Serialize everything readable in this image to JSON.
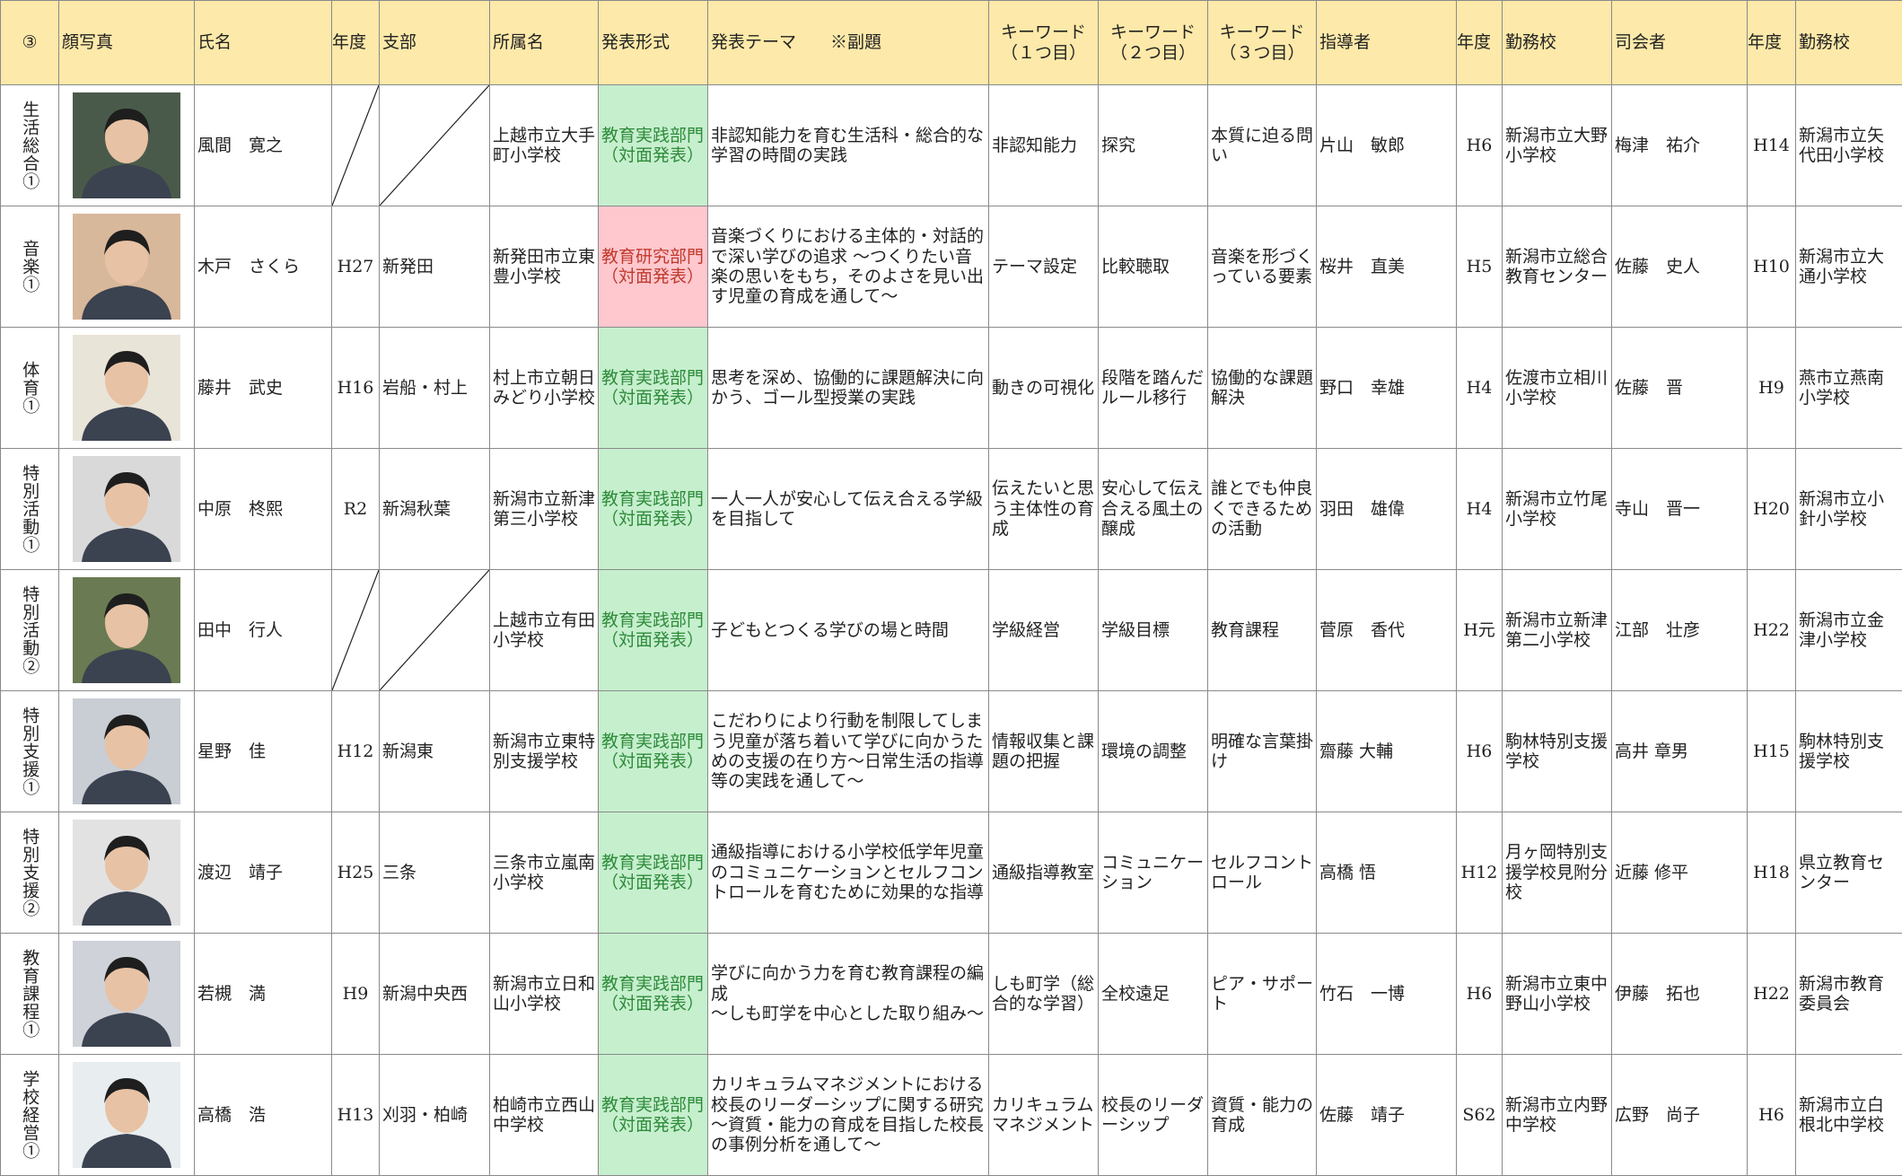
{
  "header": [
    "③",
    "顔写真",
    "氏名",
    "年度",
    "支部",
    "所属名",
    "発表形式",
    "発表テーマ　　※副題",
    "キーワード（１つ目）",
    "キーワード（２つ目）",
    "キーワード（３つ目）",
    "指導者",
    "年度",
    "勤務校",
    "司会者",
    "年度",
    "勤務校"
  ],
  "rows": [
    {
      "category": "生活総合①",
      "name": "風間　寛之",
      "school": "上越市立大手町小学校",
      "format": "教育実践部門（対面発表）",
      "format_bg": "#c6efce",
      "format_color": "#2e8b3a",
      "theme": "非認知能力を育む生活科・総合的な学習の時間の実践",
      "keywords": [
        "非認知能力",
        "探究",
        "本質に迫る問い"
      ],
      "advisor": "片山　敏郎",
      "advisor_year": "H6",
      "advisor_school": "新潟市立大野小学校",
      "chair": "梅津　祐介",
      "chair_year": "H14",
      "chair_school": "新潟市立矢代田小学校"
    },
    {
      "category": "音楽①",
      "name": "木戸　さくら",
      "year": "H27",
      "branch": "新発田",
      "school": "新発田市立東豊小学校",
      "format": "教育研究部門（対面発表）",
      "format_bg": "#ffc7ce",
      "format_color": "#c0392b",
      "theme": "音楽づくりにおける主体的・対話的で深い学びの追求 ～つくりたい音楽の思いをもち，そのよさを見い出す児童の育成を通して～",
      "keywords": [
        "テーマ設定",
        "比較聴取",
        "音楽を形づくっている要素"
      ],
      "advisor": "桜井　直美",
      "advisor_year": "H5",
      "advisor_school": "新潟市立総合教育センター",
      "chair": "佐藤　史人",
      "chair_year": "H10",
      "chair_school": "新潟市立大通小学校"
    },
    {
      "category": "体育①",
      "name": "藤井　武史",
      "year": "H16",
      "branch": "岩船・村上",
      "school": "村上市立朝日みどり小学校",
      "format": "教育実践部門（対面発表）",
      "format_bg": "#c6efce",
      "format_color": "#2e8b3a",
      "theme": "思考を深め、協働的に課題解決に向かう、ゴール型授業の実践",
      "keywords": [
        "動きの可視化",
        "段階を踏んだルール移行",
        "協働的な課題解決"
      ],
      "advisor": "野口　幸雄",
      "advisor_year": "H4",
      "advisor_school": "佐渡市立相川小学校",
      "chair": "佐藤　晋",
      "chair_year": "H9",
      "chair_school": "燕市立燕南小学校"
    },
    {
      "category": "特別活動①",
      "name": "中原　柊熙",
      "year": "R2",
      "branch": "新潟秋葉",
      "school": "新潟市立新津第三小学校",
      "format": "教育実践部門（対面発表）",
      "format_bg": "#c6efce",
      "format_color": "#2e8b3a",
      "theme": "一人一人が安心して伝え合える学級を目指して",
      "keywords": [
        "伝えたいと思う主体性の育成",
        "安心して伝え合える風土の醸成",
        "誰とでも仲良くできるための活動"
      ],
      "advisor": "羽田　雄偉",
      "advisor_year": "H4",
      "advisor_school": "新潟市立竹尾小学校",
      "chair": "寺山　晋一",
      "chair_year": "H20",
      "chair_school": "新潟市立小針小学校"
    },
    {
      "category": "特別活動②",
      "name": "田中　行人",
      "school": "上越市立有田小学校",
      "format": "教育実践部門（対面発表）",
      "format_bg": "#c6efce",
      "format_color": "#2e8b3a",
      "theme": "子どもとつくる学びの場と時間",
      "keywords": [
        "学級経営",
        "学級目標",
        "教育課程"
      ],
      "advisor": "菅原　香代",
      "advisor_year": "H元",
      "advisor_school": "新潟市立新津第二小学校",
      "chair": "江部　壮彦",
      "chair_year": "H22",
      "chair_school": "新潟市立金津小学校"
    },
    {
      "category": "特別支援①",
      "name": "星野　佳",
      "year": "H12",
      "branch": "新潟東",
      "school": "新潟市立東特別支援学校",
      "format": "教育実践部門（対面発表）",
      "format_bg": "#c6efce",
      "format_color": "#2e8b3a",
      "theme": "こだわりにより行動を制限してしまう児童が落ち着いて学びに向かうための支援の在り方～日常生活の指導等の実践を通して～",
      "keywords": [
        "情報収集と課題の把握",
        "環境の調整",
        "明確な言葉掛け"
      ],
      "advisor": "齋藤 大輔",
      "advisor_year": "H6",
      "advisor_school": "駒林特別支援学校",
      "chair": "高井 章男",
      "chair_year": "H15",
      "chair_school": "駒林特別支援学校"
    },
    {
      "category": "特別支援②",
      "name": "渡辺　靖子",
      "year": "H25",
      "branch": "三条",
      "school": "三条市立嵐南小学校",
      "format": "教育実践部門（対面発表）",
      "format_bg": "#c6efce",
      "format_color": "#2e8b3a",
      "theme": "通級指導における小学校低学年児童のコミュニケーションとセルフコントロールを育むために効果的な指導",
      "keywords": [
        "通級指導教室",
        "コミュニケーション",
        "セルフコントロール"
      ],
      "advisor": "高橋 悟",
      "advisor_year": "H12",
      "advisor_school": "月ヶ岡特別支援学校見附分校",
      "chair": "近藤 修平",
      "chair_year": "H18",
      "chair_school": "県立教育センター"
    },
    {
      "category": "教育課程①",
      "name": "若槻　満",
      "year": "H9",
      "branch": "新潟中央西",
      "school": "新潟市立日和山小学校",
      "format": "教育実践部門（対面発表）",
      "format_bg": "#c6efce",
      "format_color": "#2e8b3a",
      "theme": "学びに向かう力を育む教育課程の編成\n～しも町学を中心とした取り組み～",
      "keywords": [
        "しも町学（総合的な学習）",
        "全校遠足",
        "ピア・サポート"
      ],
      "advisor": "竹石　一博",
      "advisor_year": "H6",
      "advisor_school": "新潟市立東中野山小学校",
      "chair": "伊藤　拓也",
      "chair_year": "H22",
      "chair_school": "新潟市教育委員会"
    },
    {
      "category": "学校経営①",
      "name": "高橋　浩",
      "year": "H13",
      "branch": "刈羽・柏崎",
      "school": "柏崎市立西山中学校",
      "format": "教育実践部門（対面発表）",
      "format_bg": "#c6efce",
      "format_color": "#2e8b3a",
      "theme": "カリキュラムマネジメントにおける校長のリーダーシップに関する研究～資質・能力の育成を目指した校長の事例分析を通して～",
      "keywords": [
        "カリキュラムマネジメント",
        "校長のリーダーシップ",
        "資質・能力の育成"
      ],
      "advisor": "佐藤　靖子",
      "advisor_year": "S62",
      "advisor_school": "新潟市立内野中学校",
      "chair": "広野　尚子",
      "chair_year": "H6",
      "chair_school": "新潟市立白根北中学校"
    }
  ]
}
